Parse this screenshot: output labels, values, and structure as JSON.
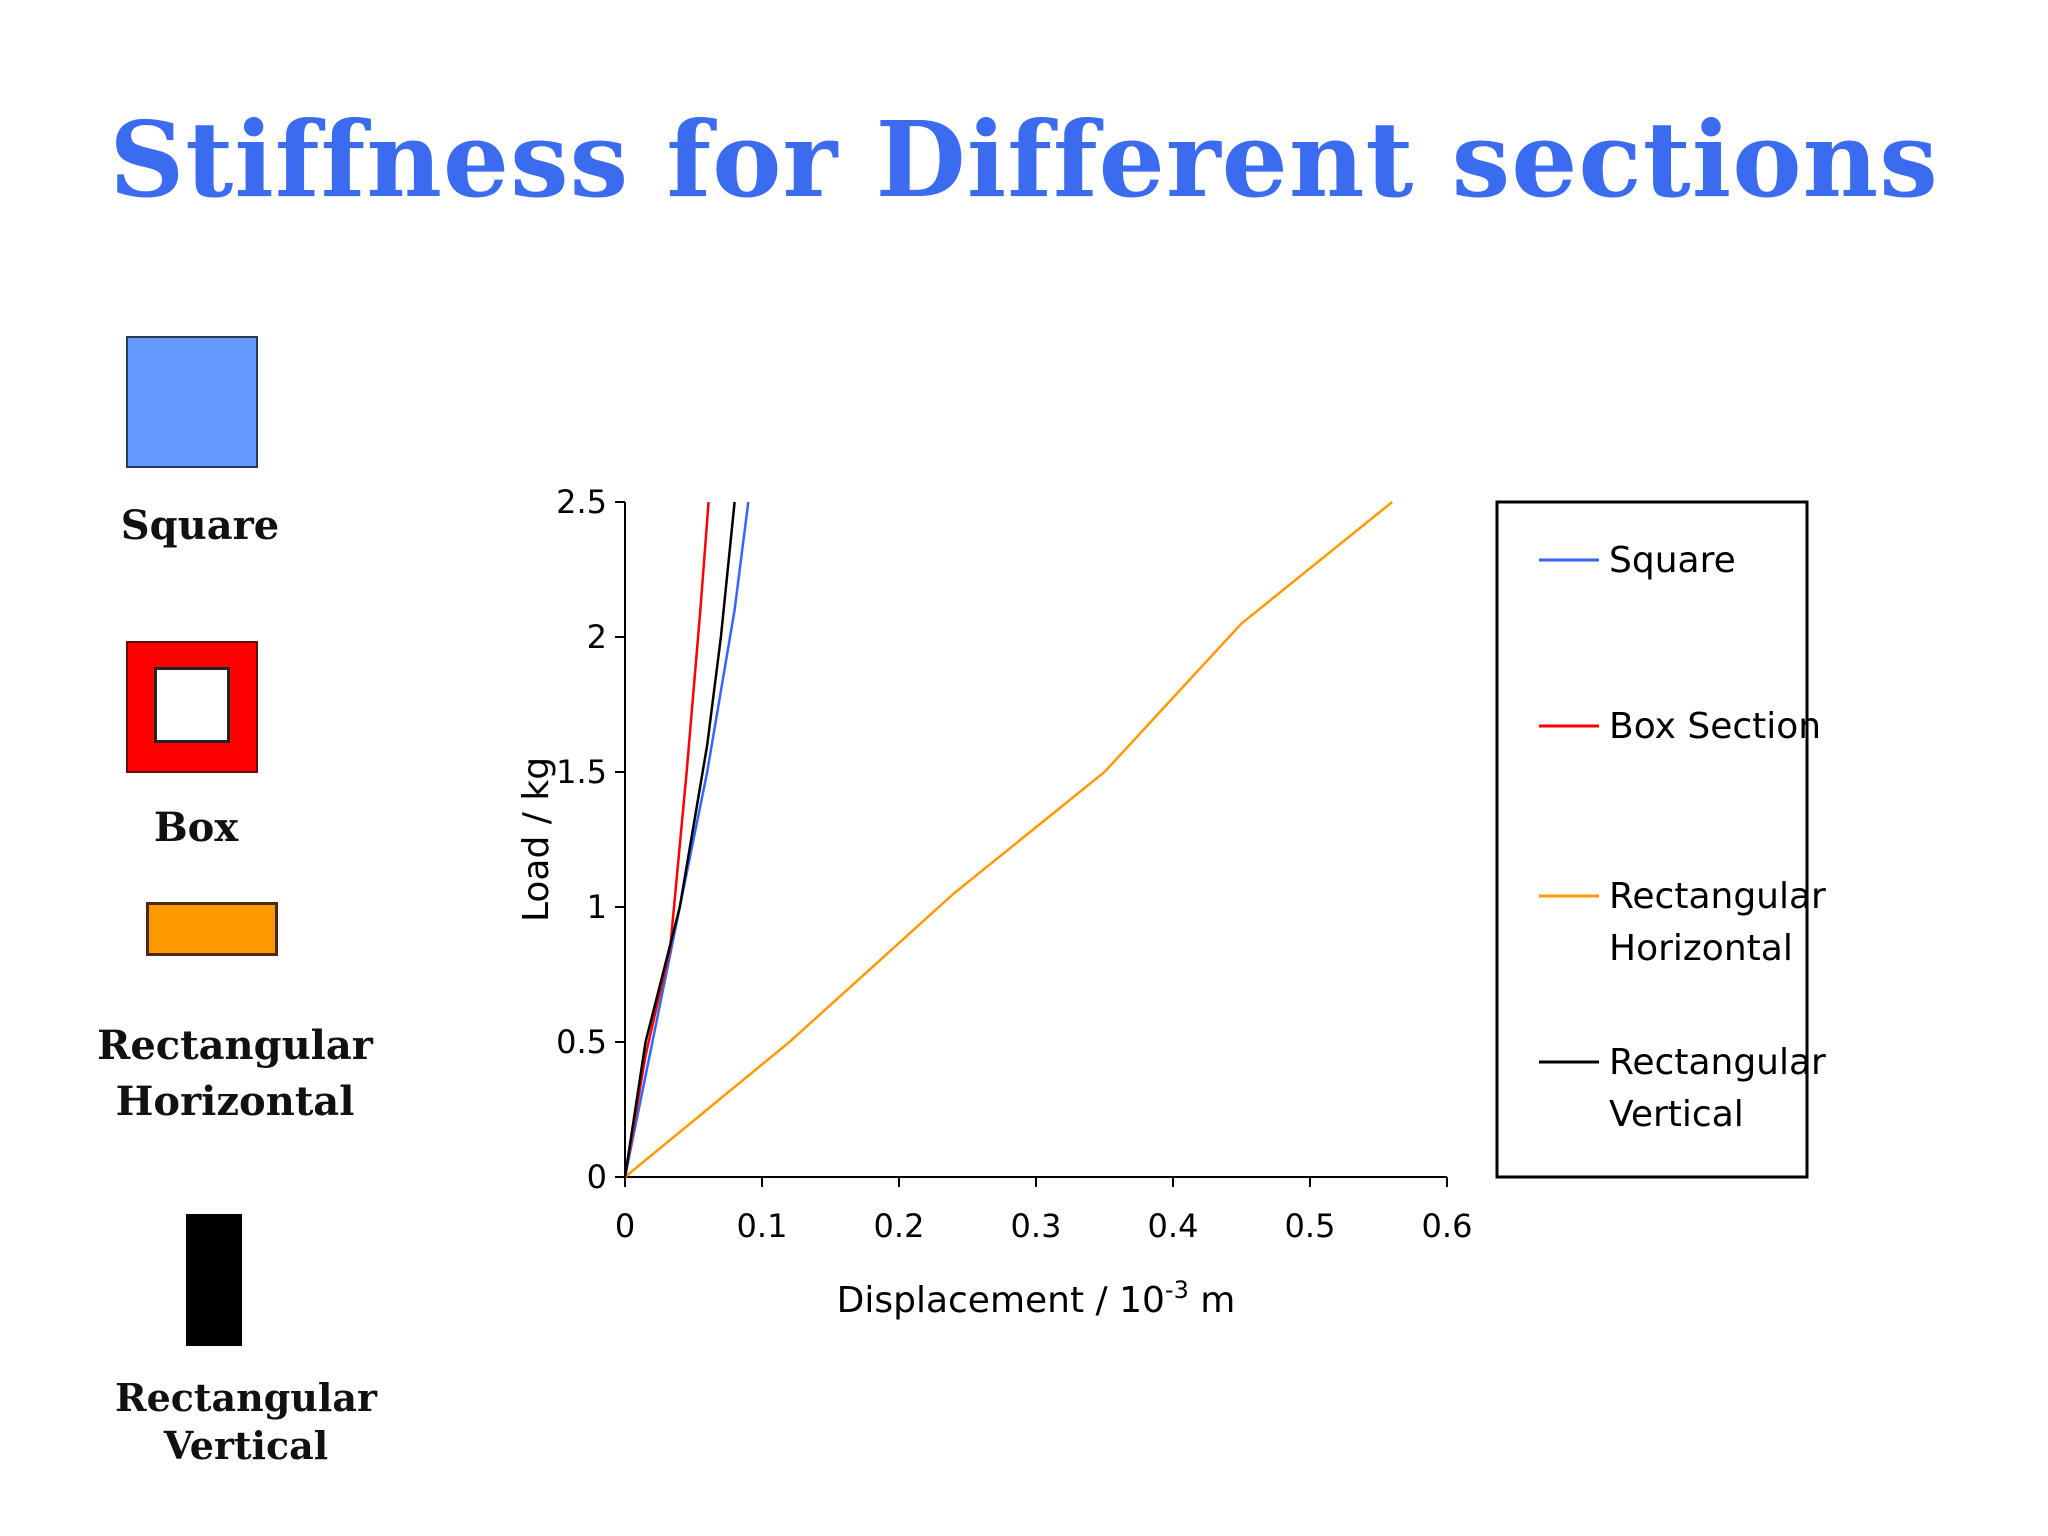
{
  "slide": {
    "title": "Stiffness for Different sections"
  },
  "shapes": {
    "square": {
      "label": "Square",
      "color": "#6699ff"
    },
    "box": {
      "label": "Box",
      "color": "#ff0000"
    },
    "rect_horizontal": {
      "label": "Rectangular\nHorizontal",
      "color": "#ff9900"
    },
    "rect_vertical": {
      "label": "Rectangular\nVertical",
      "color": "#000000"
    }
  },
  "chart_data": {
    "type": "line",
    "title": "",
    "xlabel": "Displacement / 10",
    "xlabel_sup": "-3",
    "xlabel_unit": " m",
    "ylabel": "Load / kg",
    "xlim": [
      0,
      0.6
    ],
    "ylim": [
      0,
      2.5
    ],
    "xticks": [
      "0",
      "0.1",
      "0.2",
      "0.3",
      "0.4",
      "0.5",
      "0.6"
    ],
    "yticks": [
      "0",
      "0.5",
      "1",
      "1.5",
      "2",
      "2.5"
    ],
    "grid": false,
    "legend_position": "right",
    "series": [
      {
        "name": "Square",
        "color": "#3366ff",
        "x": [
          0,
          0.02,
          0.04,
          0.06,
          0.08,
          0.09
        ],
        "y": [
          0,
          0.5,
          1.0,
          1.5,
          2.1,
          2.5
        ]
      },
      {
        "name": "Box Section",
        "color": "#ff0000",
        "x": [
          0,
          0.015,
          0.033,
          0.045,
          0.055,
          0.061
        ],
        "y": [
          0,
          0.45,
          0.85,
          1.5,
          2.1,
          2.5
        ]
      },
      {
        "name": "Rectangular\nHorizontal",
        "color": "#ff9900",
        "x": [
          0,
          0.12,
          0.24,
          0.35,
          0.45,
          0.56
        ],
        "y": [
          0,
          0.5,
          1.05,
          1.5,
          2.05,
          2.5
        ]
      },
      {
        "name": "Rectangular\nVertical",
        "color": "#000000",
        "x": [
          0,
          0.015,
          0.04,
          0.06,
          0.07,
          0.08
        ],
        "y": [
          0,
          0.5,
          1.0,
          1.6,
          2.0,
          2.5
        ]
      }
    ]
  }
}
